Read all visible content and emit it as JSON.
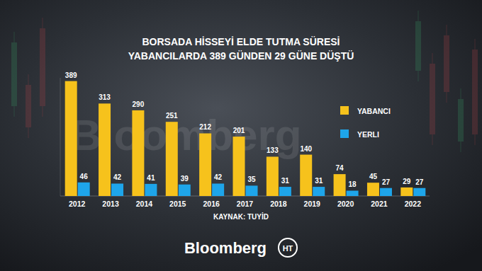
{
  "chart_data": {
    "type": "bar",
    "title": "BORSADA HİSSEYİ ELDE TUTMA SÜRESİ",
    "subtitle": "YABANCILARDA 389 GÜNDEN 29 GÜNE DÜŞTÜ",
    "categories": [
      "2012",
      "2013",
      "2014",
      "2015",
      "2016",
      "2017",
      "2018",
      "2019",
      "2020",
      "2021",
      "2022"
    ],
    "series": [
      {
        "name": "YABANCI",
        "color": "#f6c21c",
        "values": [
          389,
          313,
          290,
          251,
          212,
          201,
          133,
          140,
          74,
          45,
          29
        ]
      },
      {
        "name": "YERLI",
        "color": "#1ea5ea",
        "values": [
          46,
          42,
          41,
          39,
          42,
          35,
          31,
          31,
          18,
          27,
          27
        ]
      }
    ],
    "ylim": [
      0,
      400
    ],
    "data_labels": true,
    "tick_labels": "x",
    "legend": "right",
    "grid": false,
    "annotations": [
      "KAYNAK: TUYİD",
      "Bloomberg",
      "HT"
    ]
  }
}
